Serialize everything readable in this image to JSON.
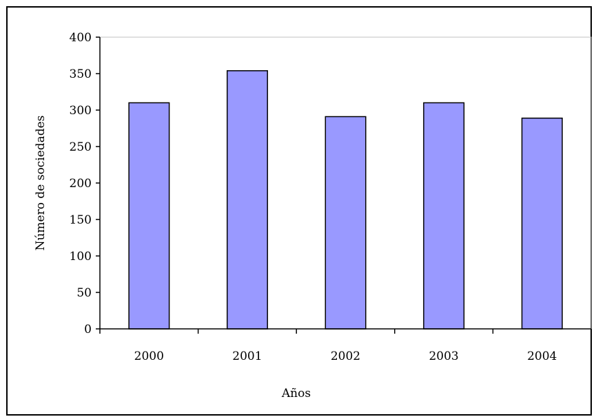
{
  "chart_data": {
    "type": "bar",
    "title": "",
    "xlabel": "Años",
    "ylabel": "Número de sociedades",
    "categories": [
      "2000",
      "2001",
      "2002",
      "2003",
      "2004"
    ],
    "values": [
      310,
      354,
      291,
      310,
      289
    ],
    "ylim": [
      0,
      400
    ],
    "yticks": [
      "0",
      "50",
      "100",
      "150",
      "200",
      "250",
      "300",
      "350",
      "400"
    ],
    "grid": false,
    "legend": "none",
    "colors": {
      "bar_fill": "#9999ff",
      "bar_stroke": "#000000",
      "plot_border": "#c0c0c0"
    }
  }
}
